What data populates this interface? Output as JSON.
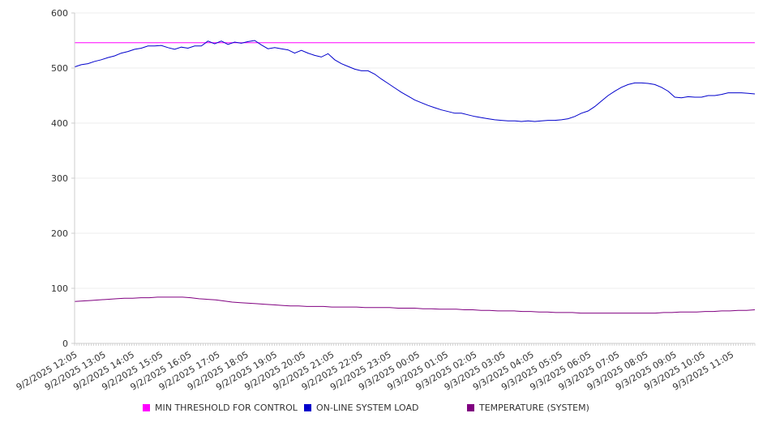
{
  "chart_data": {
    "type": "line",
    "title": "",
    "xlabel": "",
    "ylabel": "",
    "ylim": [
      0,
      600
    ],
    "y_ticks": [
      0,
      100,
      200,
      300,
      400,
      500,
      600
    ],
    "grid": "horizontal",
    "legend_position": "bottom",
    "x_start": "9/2/2025 12:05",
    "x_step_minutes": 5,
    "x_tick_labels": [
      "9/2/2025 12:05",
      "9/2/2025 13:05",
      "9/2/2025 14:05",
      "9/2/2025 15:05",
      "9/2/2025 16:05",
      "9/2/2025 17:05",
      "9/2/2025 18:05",
      "9/2/2025 19:05",
      "9/2/2025 20:05",
      "9/2/2025 21:05",
      "9/2/2025 22:05",
      "9/2/2025 23:05",
      "9/3/2025 00:05",
      "9/3/2025 01:05",
      "9/3/2025 02:05",
      "9/3/2025 03:05",
      "9/3/2025 04:05",
      "9/3/2025 05:05",
      "9/3/2025 06:05",
      "9/3/2025 07:05",
      "9/3/2025 08:05",
      "9/3/2025 09:05",
      "9/3/2025 10:05",
      "9/3/2025 11:05"
    ],
    "series": [
      {
        "name": "MIN THRESHOLD FOR CONTROL",
        "color": "#ff00ff",
        "constant": 546
      },
      {
        "name": "ON-LINE SYSTEM LOAD",
        "color": "#0000cc",
        "values": [
          502,
          506,
          508,
          512,
          515,
          519,
          522,
          527,
          530,
          534,
          536,
          540,
          540,
          541,
          537,
          534,
          538,
          536,
          540,
          540,
          549,
          544,
          549,
          543,
          547,
          545,
          548,
          550,
          542,
          535,
          537,
          535,
          533,
          527,
          532,
          527,
          523,
          520,
          526,
          515,
          508,
          503,
          498,
          495,
          495,
          489,
          480,
          472,
          464,
          456,
          449,
          442,
          437,
          432,
          428,
          424,
          421,
          418,
          418,
          415,
          412,
          410,
          408,
          406,
          405,
          404,
          404,
          403,
          404,
          403,
          404,
          405,
          405,
          406,
          408,
          412,
          418,
          422,
          430,
          440,
          450,
          458,
          465,
          470,
          473,
          473,
          472,
          470,
          465,
          458,
          447,
          446,
          448,
          447,
          447,
          450,
          450,
          452,
          455,
          455,
          455,
          454,
          453
        ]
      },
      {
        "name": "TEMPERATURE (SYSTEM)",
        "color": "#800080",
        "values": [
          76,
          77,
          78,
          79,
          80,
          81,
          82,
          82,
          83,
          83,
          84,
          84,
          84,
          84,
          83,
          81,
          80,
          79,
          77,
          75,
          74,
          73,
          72,
          71,
          70,
          69,
          68,
          68,
          67,
          67,
          67,
          66,
          66,
          66,
          66,
          65,
          65,
          65,
          65,
          64,
          64,
          64,
          63,
          63,
          62,
          62,
          62,
          61,
          61,
          60,
          60,
          59,
          59,
          59,
          58,
          58,
          57,
          57,
          56,
          56,
          56,
          55,
          55,
          55,
          55,
          55,
          55,
          55,
          55,
          55,
          55,
          56,
          56,
          57,
          57,
          57,
          58,
          58,
          59,
          59,
          60,
          60,
          61
        ]
      }
    ]
  }
}
